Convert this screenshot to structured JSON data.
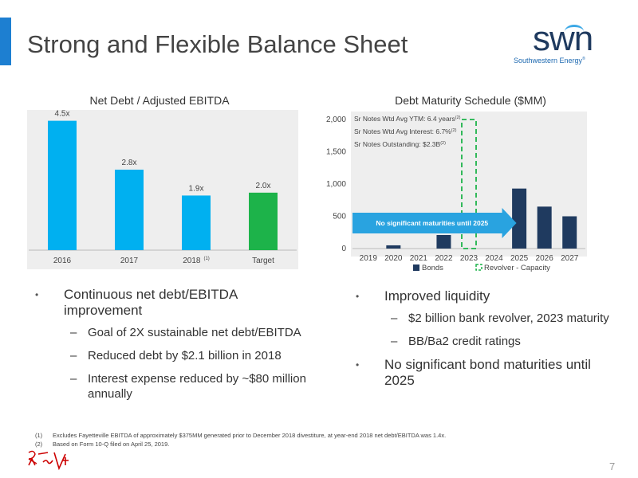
{
  "slide": {
    "title": "Strong and Flexible Balance Sheet",
    "page_number": "7",
    "accent_color": "#1d7fd1"
  },
  "logo": {
    "wordmark": "swn",
    "subtitle": "Southwestern Energy",
    "trademark": "®"
  },
  "left_chart": {
    "title": "Net Debt / Adjusted EBITDA"
  },
  "right_chart": {
    "title": "Debt Maturity Schedule ($MM)",
    "annotations": [
      {
        "text": "Sr Notes Wtd Avg YTM: 6.4 years",
        "sup": "(2)"
      },
      {
        "text": "Sr Notes Wtd Avg Interest: 6.7%",
        "sup": "(2)"
      },
      {
        "text": "Sr Notes Outstanding: $2.3B",
        "sup": "(2)"
      }
    ],
    "arrow_label": "No significant maturities until 2025"
  },
  "chart_data": [
    {
      "type": "bar",
      "title": "Net Debt / Adjusted EBITDA",
      "categories": [
        "2016",
        "2017",
        "2018",
        "Target"
      ],
      "category_superscripts": [
        "",
        "",
        "(1)",
        ""
      ],
      "values": [
        4.5,
        2.8,
        1.9,
        2.0
      ],
      "data_labels": [
        "4.5x",
        "2.8x",
        "1.9x",
        "2.0x"
      ],
      "colors": [
        "#00b0f0",
        "#00b0f0",
        "#00b0f0",
        "#1db34a"
      ],
      "ylim": [
        0,
        5
      ],
      "grid": false,
      "y_axis_visible": false
    },
    {
      "type": "bar",
      "title": "Debt Maturity Schedule ($MM)",
      "categories": [
        "2019",
        "2020",
        "2021",
        "2022",
        "2023",
        "2024",
        "2025",
        "2026",
        "2027"
      ],
      "series": [
        {
          "name": "Bonds",
          "values": [
            0,
            50,
            0,
            210,
            0,
            0,
            930,
            650,
            500
          ],
          "color": "#1f3a5f"
        },
        {
          "name": "Revolver - Capacity",
          "values": [
            0,
            0,
            0,
            0,
            2000,
            0,
            0,
            0,
            0
          ],
          "color": "#1db34a",
          "style": "dashed-outline"
        }
      ],
      "y_ticks": [
        "0",
        "500",
        "1,000",
        "1,500",
        "2,000"
      ],
      "ylim": [
        0,
        2000
      ],
      "grid": false,
      "legend": "bottom"
    }
  ],
  "left_bullets": [
    {
      "text": "Continuous net debt/EBITDA improvement",
      "sub": [
        "Goal of 2X sustainable net debt/EBITDA",
        "Reduced debt by $2.1 billion in 2018",
        "Interest expense reduced by ~$80 million annually"
      ]
    }
  ],
  "right_bullets": [
    {
      "text": "Improved liquidity",
      "sub": [
        "$2 billion bank revolver, 2023 maturity",
        "BB/Ba2 credit ratings"
      ]
    },
    {
      "text": "No significant bond maturities until 2025",
      "sub": []
    }
  ],
  "footnotes": [
    {
      "num": "(1)",
      "text": "Excludes Fayetteville EBITDA of approximately $375MM generated prior to December 2018 divestiture, at year-end 2018 net debt/EBITDA was 1.4x."
    },
    {
      "num": "(2)",
      "text": "Based on Form 10-Q filed on April 25, 2019."
    }
  ]
}
